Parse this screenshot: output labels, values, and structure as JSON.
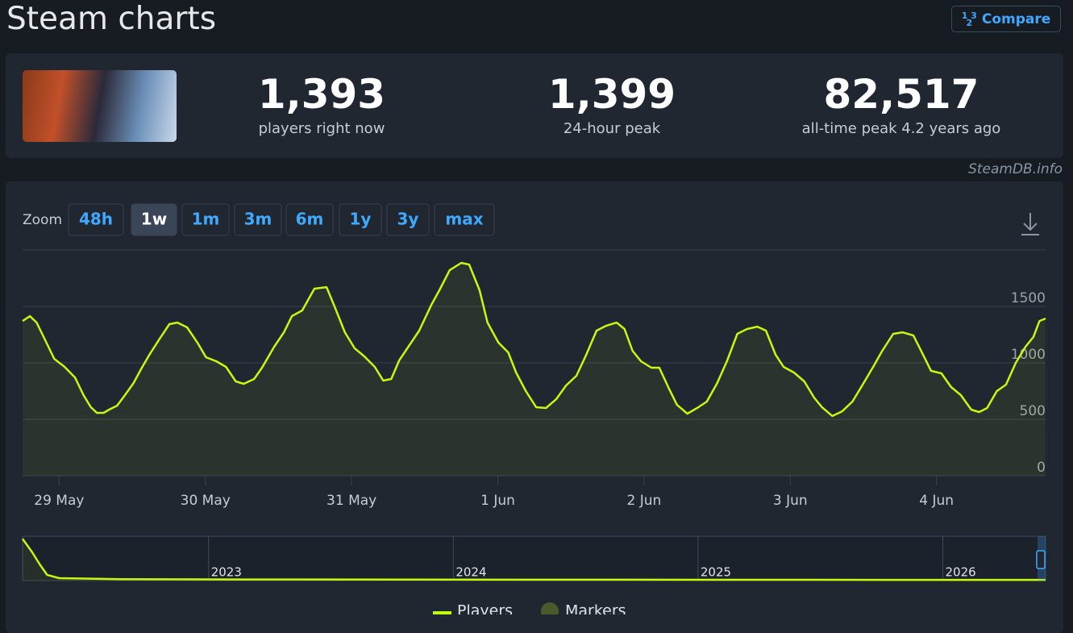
{
  "header": {
    "title": "Steam charts",
    "compare_button": "Compare"
  },
  "stats": [
    {
      "value": "1,393",
      "label": "players right now"
    },
    {
      "value": "1,399",
      "label": "24-hour peak"
    },
    {
      "value": "82,517",
      "label": "all-time peak 4.2 years ago"
    }
  ],
  "source": "SteamDB.info",
  "zoom": {
    "label": "Zoom",
    "options": [
      "48h",
      "1w",
      "1m",
      "3m",
      "6m",
      "1y",
      "3y",
      "max"
    ],
    "active": 1
  },
  "chart_data": [
    {
      "type": "line",
      "x": [
        -6.0,
        -4.8,
        -3.7,
        -2.4,
        -0.8,
        0.9,
        2.6,
        4.0,
        5.2,
        6.2,
        7.3,
        8.2,
        9.5,
        10.8,
        12.2,
        13.5,
        14.8,
        16.5,
        18.1,
        19.4,
        21.0,
        22.7,
        24.1,
        25.8,
        27.4,
        29.0,
        30.3,
        32.0,
        33.3,
        35.3,
        36.9,
        38.2,
        39.9,
        41.9,
        43.9,
        45.2,
        46.9,
        48.5,
        50.1,
        51.8,
        53.2,
        54.5,
        55.8,
        57.5,
        59.1,
        61.1,
        62.4,
        64.1,
        66.0,
        67.3,
        69.0,
        70.3,
        72.1,
        73.7,
        75.0,
        76.6,
        78.3,
        79.9,
        81.6,
        83.2,
        84.9,
        86.5,
        88.2,
        89.8,
        91.5,
        92.8,
        94.1,
        95.5,
        97.2,
        98.5,
        100.1,
        101.4,
        103.1,
        104.7,
        106.3,
        108.0,
        109.6,
        111.3,
        112.9,
        114.6,
        116.0,
        117.6,
        118.9,
        120.6,
        122.3,
        123.9,
        125.2,
        126.9,
        128.5,
        130.2,
        131.8,
        133.6,
        135.1,
        136.9,
        138.4,
        140.2,
        141.8,
        143.1,
        144.8,
        146.4,
        148.0,
        149.7,
        151.0,
        152.3,
        153.9,
        155.4,
        157.0,
        158.6,
        159.9,
        160.9,
        161.9
      ],
      "series": [
        {
          "name": "Players",
          "color": "#c6f910",
          "values": [
            1371,
            1414,
            1357,
            1214,
            1036,
            964,
            871,
            714,
            607,
            557,
            557,
            586,
            621,
            714,
            821,
            950,
            1071,
            1214,
            1343,
            1357,
            1314,
            1179,
            1050,
            1014,
            964,
            836,
            814,
            857,
            957,
            1143,
            1271,
            1414,
            1464,
            1657,
            1671,
            1500,
            1271,
            1129,
            1057,
            964,
            843,
            857,
            1021,
            1157,
            1286,
            1514,
            1643,
            1821,
            1886,
            1871,
            1643,
            1357,
            1179,
            1093,
            914,
            750,
            607,
            600,
            679,
            800,
            886,
            1071,
            1286,
            1329,
            1357,
            1300,
            1107,
            1014,
            957,
            957,
            771,
            629,
            550,
            600,
            657,
            821,
            1014,
            1257,
            1300,
            1321,
            1286,
            1071,
            964,
            914,
            836,
            693,
            607,
            529,
            571,
            657,
            800,
            964,
            1107,
            1257,
            1271,
            1243,
            1071,
            929,
            907,
            786,
            714,
            586,
            564,
            600,
            750,
            807,
            1000,
            1143,
            1229,
            1371,
            1393
          ]
        }
      ],
      "marker_series": {
        "name": "Markers",
        "color": "#4a5a2c"
      },
      "xlim": [
        -6.0,
        161.9
      ],
      "xticks": [
        {
          "value": 0,
          "label": "29 May"
        },
        {
          "value": 24,
          "label": "30 May"
        },
        {
          "value": 48,
          "label": "31 May"
        },
        {
          "value": 72,
          "label": "1 Jun"
        },
        {
          "value": 96,
          "label": "2 Jun"
        },
        {
          "value": 120,
          "label": "3 Jun"
        },
        {
          "value": 144,
          "label": "4 Jun"
        }
      ],
      "ylim": [
        0,
        2000
      ],
      "yticks": [
        0,
        500,
        1000,
        1500
      ],
      "grid": true
    },
    {
      "type": "line",
      "x": [
        2022.24,
        2022.28,
        2022.31,
        2022.34,
        2022.39,
        2022.64,
        2023.14,
        2023.8,
        2024.46,
        2025.12,
        2025.77,
        2026.42
      ],
      "values": [
        80000,
        54000,
        31000,
        11000,
        4600,
        2800,
        2200,
        2000,
        1700,
        1500,
        1400,
        1400
      ],
      "color": "#c6f910",
      "xlim": [
        2022.24,
        2026.42
      ],
      "xticks": [
        2023,
        2024,
        2025,
        2026
      ],
      "ylim": [
        0,
        85000
      ]
    }
  ]
}
